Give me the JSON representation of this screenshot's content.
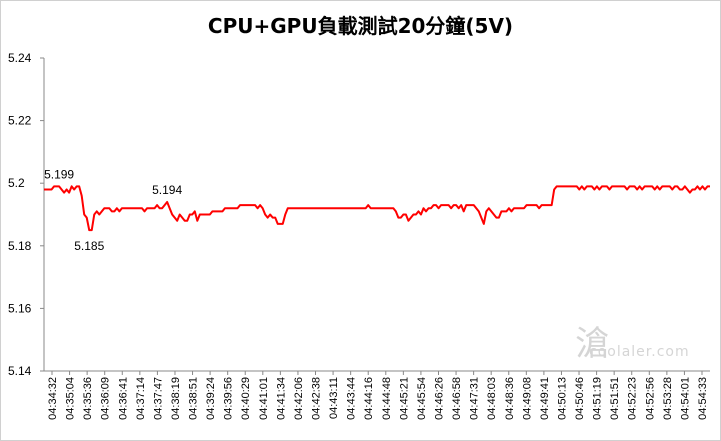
{
  "chart_data": {
    "type": "line",
    "title": "CPU+GPU負載測試20分鐘(5V)",
    "ylim": [
      5.14,
      5.24
    ],
    "yticks": [
      "5.14",
      "5.16",
      "5.18",
      "5.2",
      "5.22",
      "5.24"
    ],
    "grid": false,
    "line_color": "#ff0000",
    "x_tick_labels": [
      "04:34:32",
      "04:35:04",
      "04:35:36",
      "04:36:09",
      "04:36:41",
      "04:37:14",
      "04:37:47",
      "04:38:19",
      "04:38:51",
      "04:39:24",
      "04:39:56",
      "04:40:29",
      "04:41:01",
      "04:41:34",
      "04:42:06",
      "04:42:38",
      "04:43:11",
      "04:43:44",
      "04:44:16",
      "04:44:48",
      "04:45:21",
      "04:45:54",
      "04:46:26",
      "04:46:58",
      "04:47:31",
      "04:48:03",
      "04:48:36",
      "04:49:08",
      "04:49:41",
      "04:50:13",
      "04:50:46",
      "04:51:19",
      "04:51:51",
      "04:52:23",
      "04:52:56",
      "04:53:28",
      "04:54:01",
      "04:54:33"
    ],
    "series": [
      {
        "values": [
          5.198,
          5.198,
          5.198,
          5.198,
          5.199,
          5.199,
          5.199,
          5.198,
          5.197,
          5.198,
          5.197,
          5.199,
          5.198,
          5.199,
          5.199,
          5.196,
          5.19,
          5.189,
          5.185,
          5.185,
          5.19,
          5.191,
          5.19,
          5.191,
          5.192,
          5.192,
          5.192,
          5.191,
          5.191,
          5.192,
          5.191,
          5.192,
          5.192,
          5.192,
          5.192,
          5.192,
          5.192,
          5.192,
          5.192,
          5.192,
          5.191,
          5.192,
          5.192,
          5.192,
          5.192,
          5.193,
          5.192,
          5.192,
          5.193,
          5.194,
          5.192,
          5.19,
          5.189,
          5.188,
          5.19,
          5.189,
          5.188,
          5.188,
          5.19,
          5.19,
          5.191,
          5.188,
          5.19,
          5.19,
          5.19,
          5.19,
          5.19,
          5.191,
          5.191,
          5.191,
          5.191,
          5.191,
          5.192,
          5.192,
          5.192,
          5.192,
          5.192,
          5.192,
          5.193,
          5.193,
          5.193,
          5.193,
          5.193,
          5.193,
          5.193,
          5.192,
          5.193,
          5.192,
          5.19,
          5.189,
          5.19,
          5.189,
          5.189,
          5.187,
          5.187,
          5.187,
          5.19,
          5.192,
          5.192,
          5.192,
          5.192,
          5.192,
          5.192,
          5.192,
          5.192,
          5.192,
          5.192,
          5.192,
          5.192,
          5.192,
          5.192,
          5.192,
          5.192,
          5.192,
          5.192,
          5.192,
          5.192,
          5.192,
          5.192,
          5.192,
          5.192,
          5.192,
          5.192,
          5.192,
          5.192,
          5.192,
          5.192,
          5.192,
          5.192,
          5.193,
          5.192,
          5.192,
          5.192,
          5.192,
          5.192,
          5.192,
          5.192,
          5.192,
          5.192,
          5.192,
          5.191,
          5.189,
          5.189,
          5.19,
          5.19,
          5.188,
          5.189,
          5.19,
          5.19,
          5.191,
          5.19,
          5.192,
          5.191,
          5.192,
          5.192,
          5.193,
          5.193,
          5.192,
          5.193,
          5.193,
          5.193,
          5.193,
          5.192,
          5.193,
          5.193,
          5.192,
          5.193,
          5.191,
          5.193,
          5.193,
          5.193,
          5.193,
          5.192,
          5.191,
          5.189,
          5.187,
          5.191,
          5.192,
          5.191,
          5.19,
          5.189,
          5.189,
          5.191,
          5.191,
          5.191,
          5.192,
          5.191,
          5.192,
          5.192,
          5.192,
          5.192,
          5.192,
          5.193,
          5.193,
          5.193,
          5.193,
          5.193,
          5.192,
          5.193,
          5.193,
          5.193,
          5.193,
          5.193,
          5.198,
          5.199,
          5.199,
          5.199,
          5.199,
          5.199,
          5.199,
          5.199,
          5.199,
          5.199,
          5.198,
          5.199,
          5.198,
          5.199,
          5.199,
          5.199,
          5.198,
          5.199,
          5.198,
          5.199,
          5.199,
          5.199,
          5.198,
          5.199,
          5.199,
          5.199,
          5.199,
          5.199,
          5.199,
          5.198,
          5.199,
          5.199,
          5.199,
          5.198,
          5.199,
          5.198,
          5.199,
          5.199,
          5.199,
          5.199,
          5.198,
          5.199,
          5.198,
          5.199,
          5.199,
          5.199,
          5.199,
          5.198,
          5.199,
          5.199,
          5.198,
          5.198,
          5.199,
          5.198,
          5.197,
          5.198,
          5.198,
          5.199,
          5.198,
          5.199,
          5.198,
          5.199,
          5.199
        ]
      }
    ],
    "annotations": [
      {
        "text": "5.199",
        "index": 6,
        "value": 5.199,
        "place": "above"
      },
      {
        "text": "5.185",
        "index": 18,
        "value": 5.185,
        "place": "below"
      },
      {
        "text": "5.194",
        "index": 49,
        "value": 5.194,
        "place": "above"
      }
    ]
  },
  "watermark": {
    "site": "coolaler.com",
    "seal": "滄"
  }
}
